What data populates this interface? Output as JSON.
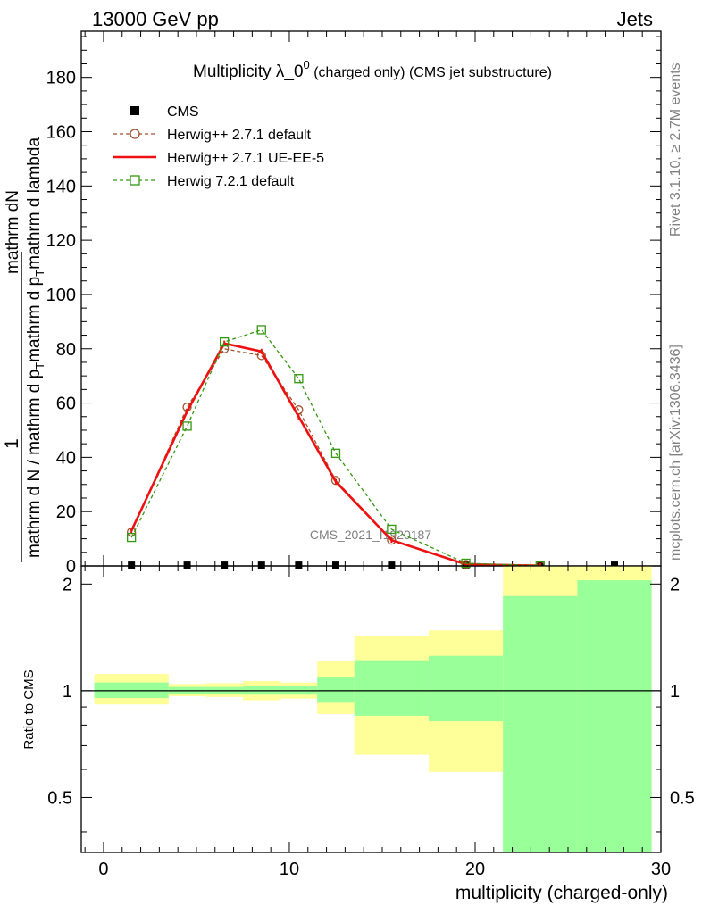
{
  "header": {
    "left": "13000 GeV pp",
    "right": "Jets"
  },
  "side_labels": {
    "rivet": "Rivet 3.1.10, ≥ 2.7M events",
    "mcplots": "mcplots.cern.ch [arXiv:1306.3436]"
  },
  "watermark": "CMS_2021_I1920187",
  "chart_data": [
    {
      "type": "line",
      "title": "Multiplicity λ_0",
      "title_sup": "0",
      "title_suffix": " (charged only) (CMS jet substructure)",
      "xlim": [
        -1.2,
        30
      ],
      "ylim": [
        0,
        197
      ],
      "yticks": [
        0,
        20,
        40,
        60,
        80,
        100,
        120,
        140,
        160,
        180
      ],
      "ylabel_parts": {
        "numerator": "1",
        "denominator": "mathrm d N / mathrm d p",
        "denominator_sub": "T",
        "denominator_tail": "mathrm d p",
        "denominator_tail_sub": "T",
        "denominator_end": "mathrm d lambda",
        "frac_num": "mathrm d",
        "frac_num2": "N"
      },
      "ylabel_plain": "1 / mathrm d N / mathrm d p_T mathrm d p_T mathrm d lambda mathrm d^2N",
      "legend_position": "top-left",
      "series": [
        {
          "name": "CMS",
          "style": "data",
          "color": "#000000",
          "x": [
            1.5,
            4.5,
            6.5,
            8.5,
            10.5,
            12.5,
            15.5,
            19.5,
            23.5,
            27.5
          ],
          "y": [
            0.3,
            0.3,
            0.3,
            0.3,
            0.3,
            0.3,
            0.3,
            0.3,
            0.3,
            0.3
          ]
        },
        {
          "name": "Herwig++ 2.7.1 default",
          "style": "dashed-circle",
          "color": "#a0522d",
          "x": [
            1.5,
            4.5,
            6.5,
            8.5,
            10.5,
            12.5,
            15.5,
            19.5,
            23.5
          ],
          "y": [
            12.5,
            58.5,
            80,
            77.5,
            57.5,
            31.5,
            9.5,
            0.5,
            0.1
          ]
        },
        {
          "name": "Herwig++ 2.7.1 UE-EE-5",
          "style": "solid",
          "color": "#ee1111",
          "x": [
            1.5,
            4.5,
            6.5,
            8.5,
            10.5,
            12.5,
            15.5,
            19.5,
            23.5
          ],
          "y": [
            13,
            57,
            82,
            79,
            55,
            31,
            9.5,
            0.6,
            0.1
          ]
        },
        {
          "name": "Herwig 7.2.1 default",
          "style": "dashed-square",
          "color": "#339911",
          "x": [
            1.5,
            4.5,
            6.5,
            8.5,
            10.5,
            12.5,
            15.5,
            19.5,
            23.5
          ],
          "y": [
            10.5,
            51.5,
            82.5,
            87,
            69,
            41.5,
            13.5,
            1,
            0.1
          ]
        }
      ]
    },
    {
      "type": "area",
      "xlabel": "multiplicity (charged-only)",
      "ylabel": "Ratio to CMS",
      "xlim": [
        -1.2,
        30
      ],
      "ylim": [
        0.35,
        2.25
      ],
      "log_y": true,
      "yticks": [
        0.5,
        1,
        2
      ],
      "ytick_labels": [
        "0.5",
        "1",
        "2"
      ],
      "xticks": [
        0,
        10,
        20,
        30
      ],
      "xtick_labels": [
        "0",
        "10",
        "20",
        "30"
      ],
      "bins": [
        {
          "x0": -0.5,
          "x1": 3.5,
          "yellow": [
            0.915,
            1.115
          ],
          "green": [
            0.955,
            1.055
          ]
        },
        {
          "x0": 3.5,
          "x1": 5.5,
          "yellow": [
            0.965,
            1.045
          ],
          "green": [
            0.98,
            1.025
          ]
        },
        {
          "x0": 5.5,
          "x1": 7.5,
          "yellow": [
            0.96,
            1.05
          ],
          "green": [
            0.98,
            1.025
          ]
        },
        {
          "x0": 7.5,
          "x1": 9.5,
          "yellow": [
            0.94,
            1.065
          ],
          "green": [
            0.975,
            1.035
          ]
        },
        {
          "x0": 9.5,
          "x1": 11.5,
          "yellow": [
            0.95,
            1.055
          ],
          "green": [
            0.975,
            1.03
          ]
        },
        {
          "x0": 11.5,
          "x1": 13.5,
          "yellow": [
            0.86,
            1.21
          ],
          "green": [
            0.925,
            1.09
          ]
        },
        {
          "x0": 13.5,
          "x1": 17.5,
          "yellow": [
            0.66,
            1.43
          ],
          "green": [
            0.85,
            1.22
          ]
        },
        {
          "x0": 17.5,
          "x1": 21.5,
          "yellow": [
            0.59,
            1.48
          ],
          "green": [
            0.82,
            1.255
          ]
        },
        {
          "x0": 21.5,
          "x1": 25.5,
          "yellow": [
            0.35,
            2.25
          ],
          "green": [
            0.35,
            1.85
          ]
        },
        {
          "x0": 25.5,
          "x1": 29.5,
          "yellow": [
            0.35,
            2.25
          ],
          "green": [
            0.35,
            2.05
          ]
        }
      ]
    }
  ]
}
